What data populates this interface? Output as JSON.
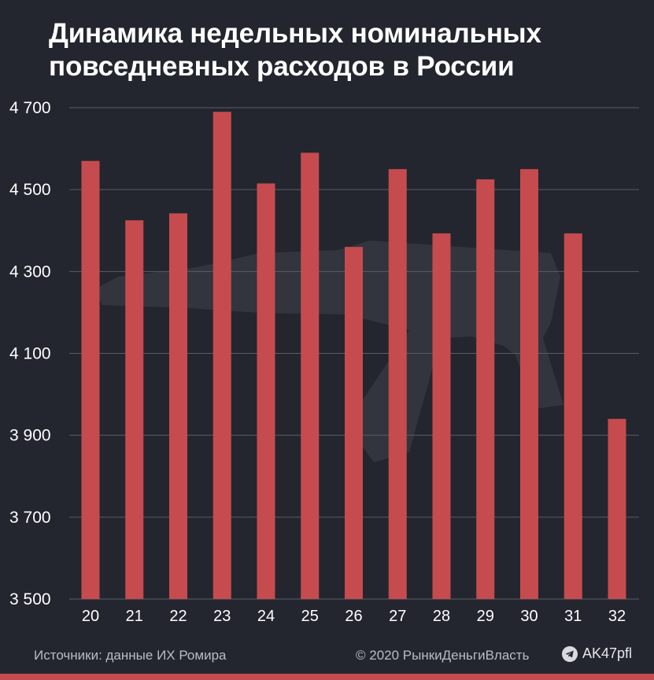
{
  "title": {
    "line1": "Динамика недельных номинальных",
    "line2": "повседневных расходов в России"
  },
  "chart_data": {
    "type": "bar",
    "title": "Динамика недельных номинальных повседневных расходов в России",
    "categories": [
      "20",
      "21",
      "22",
      "23",
      "24",
      "25",
      "26",
      "27",
      "28",
      "29",
      "30",
      "31",
      "32"
    ],
    "values": [
      4570,
      4425,
      4442,
      4690,
      4515,
      4590,
      4360,
      4550,
      4393,
      4525,
      4550,
      4393,
      3940
    ],
    "yticks": [
      "3 500",
      "3 700",
      "3 900",
      "4 100",
      "4 300",
      "4 500",
      "4 700"
    ],
    "ylim": [
      3500,
      4700
    ],
    "xlabel": "",
    "ylabel": "",
    "grid": true,
    "bar_color": "#c64b4e",
    "grid_color": "#5a5d66"
  },
  "footer": {
    "source": "Источники: данные ИХ Ромира",
    "copyright": "© 2020 РынкиДеньгиВласть",
    "channel": "AK47pfl",
    "channel_icon": "telegram-icon"
  },
  "colors": {
    "background": "#23262f",
    "accent": "#c64b4e"
  }
}
